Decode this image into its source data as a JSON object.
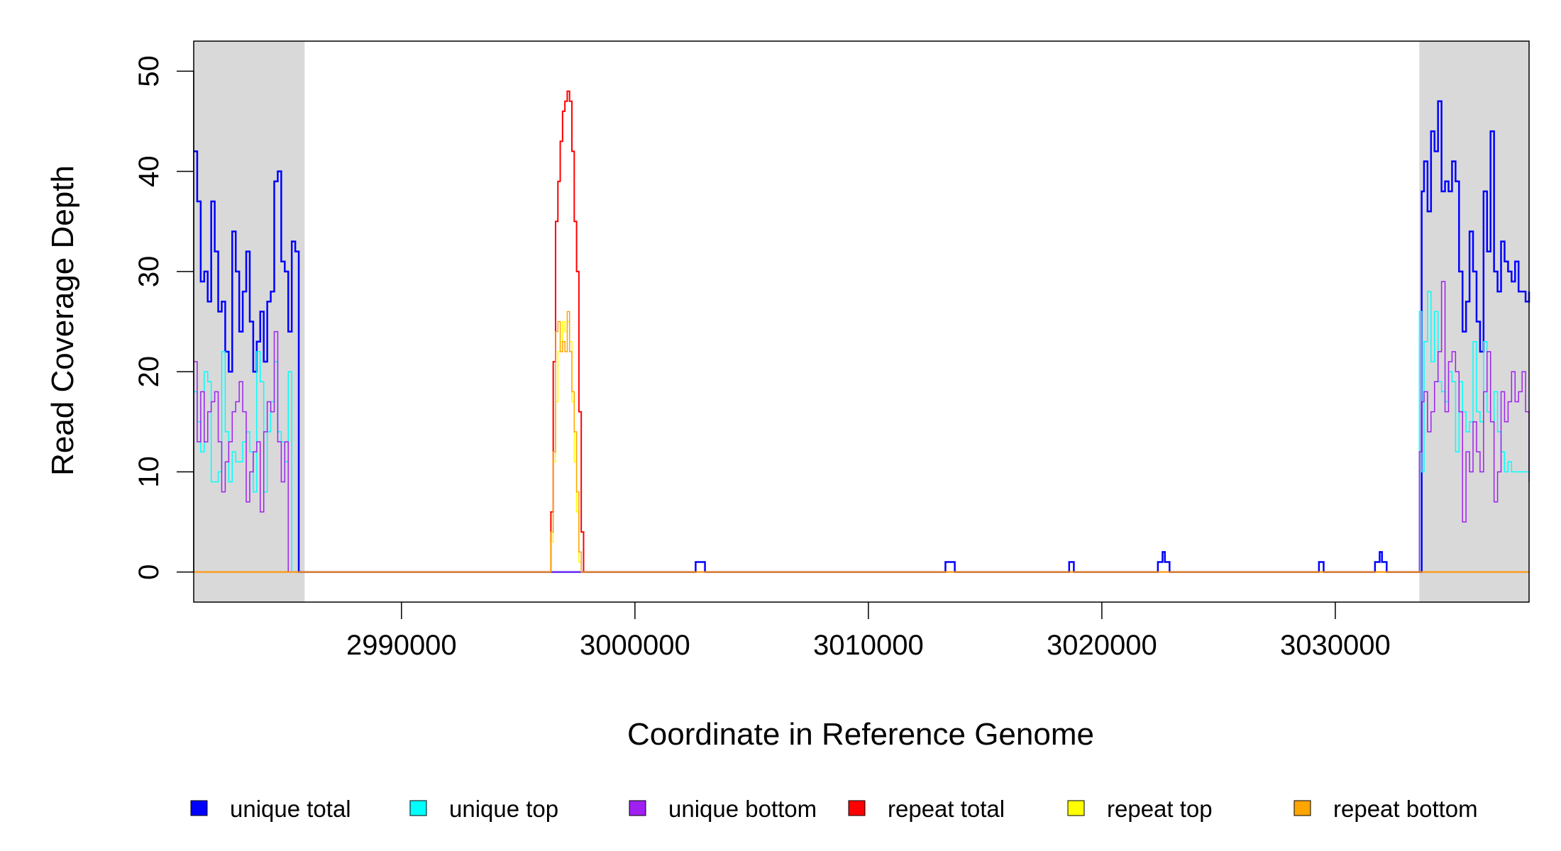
{
  "chart_data": {
    "type": "line",
    "title": "",
    "xlabel": "Coordinate in Reference Genome",
    "ylabel": "Read Coverage Depth",
    "xlim": [
      2981100,
      3038300
    ],
    "ylim": [
      -3,
      53
    ],
    "x_ticks": [
      2990000,
      3000000,
      3010000,
      3020000,
      3030000
    ],
    "x_tick_labels": [
      "2990000",
      "3000000",
      "3010000",
      "3020000",
      "3030000"
    ],
    "y_ticks": [
      0,
      10,
      20,
      30,
      40,
      50
    ],
    "y_tick_labels": [
      "0",
      "10",
      "20",
      "30",
      "40",
      "50"
    ],
    "grid": false,
    "legend_position": "bottom",
    "shaded_regions": [
      {
        "x": [
          2981100,
          2985850
        ],
        "color": "#d9d9d9"
      },
      {
        "x": [
          3033600,
          3038300
        ],
        "color": "#d9d9d9"
      }
    ],
    "series": [
      {
        "name": "unique total",
        "color": "#0000ff",
        "width": 2.5,
        "x": [
          2981100,
          2981250,
          2981400,
          2981550,
          2981700,
          2981850,
          2982000,
          2982150,
          2982300,
          2982450,
          2982600,
          2982750,
          2982900,
          2983050,
          2983200,
          2983350,
          2983500,
          2983650,
          2983800,
          2983950,
          2984100,
          2984250,
          2984400,
          2984550,
          2984700,
          2984850,
          2985000,
          2985150,
          2985300,
          2985450,
          2985600,
          2985750,
          2985850,
          2986000,
          2990000,
          3002500,
          3002600,
          3002800,
          3003000,
          3013200,
          3013300,
          3013500,
          3013700,
          3018500,
          3018600,
          3018800,
          3022300,
          3022400,
          3022600,
          3022700,
          3022900,
          3029200,
          3029300,
          3029500,
          3031500,
          3031700,
          3031900,
          3032000,
          3032200,
          3033600,
          3033700,
          3033800,
          3033950,
          3034100,
          3034250,
          3034400,
          3034550,
          3034700,
          3034850,
          3035000,
          3035150,
          3035300,
          3035450,
          3035600,
          3035750,
          3035900,
          3036050,
          3036200,
          3036350,
          3036500,
          3036650,
          3036800,
          3036950,
          3037100,
          3037250,
          3037400,
          3037550,
          3037700,
          3037850,
          3038000,
          3038150,
          3038300
        ],
        "y": [
          42,
          37,
          29,
          30,
          27,
          37,
          32,
          26,
          27,
          22,
          20,
          34,
          30,
          24,
          28,
          32,
          25,
          20,
          23,
          26,
          21,
          27,
          28,
          39,
          40,
          31,
          30,
          24,
          33,
          32,
          0,
          0,
          0,
          0,
          0,
          0,
          1,
          1,
          0,
          0,
          1,
          1,
          0,
          0,
          1,
          0,
          0,
          1,
          2,
          1,
          0,
          0,
          1,
          0,
          0,
          1,
          2,
          1,
          0,
          0,
          38,
          41,
          36,
          44,
          42,
          47,
          38,
          39,
          38,
          41,
          39,
          30,
          24,
          27,
          34,
          30,
          25,
          22,
          38,
          32,
          44,
          30,
          28,
          33,
          31,
          30,
          29,
          31,
          28,
          28,
          27,
          28
        ]
      },
      {
        "name": "unique top",
        "color": "#00ffff",
        "width": 1.5,
        "x": [
          2981100,
          2981250,
          2981400,
          2981550,
          2981700,
          2981850,
          2982000,
          2982150,
          2982300,
          2982450,
          2982600,
          2982750,
          2982900,
          2983050,
          2983200,
          2983350,
          2983500,
          2983650,
          2983800,
          2983950,
          2984100,
          2984250,
          2984400,
          2984550,
          2984700,
          2984850,
          2985000,
          2985150,
          2985300,
          2985450,
          2985600,
          2985750,
          2985850,
          2986000,
          3033600,
          3033700,
          3033800,
          3033950,
          3034100,
          3034250,
          3034400,
          3034550,
          3034700,
          3034850,
          3035000,
          3035150,
          3035300,
          3035450,
          3035600,
          3035750,
          3035900,
          3036050,
          3036200,
          3036350,
          3036500,
          3036650,
          3036800,
          3036950,
          3037100,
          3037250,
          3037400,
          3037550,
          3037700,
          3037850,
          3038000,
          3038150,
          3038300
        ],
        "y": [
          18,
          15,
          12,
          20,
          19,
          9,
          9,
          10,
          22,
          14,
          9,
          12,
          11,
          11,
          13,
          14,
          12,
          8,
          22,
          19,
          8,
          14,
          17,
          21,
          14,
          13,
          11,
          20,
          0,
          0,
          0,
          0,
          0,
          0,
          26,
          10,
          23,
          28,
          21,
          26,
          19,
          18,
          17,
          20,
          19,
          12,
          19,
          16,
          14,
          15,
          23,
          16,
          15,
          23,
          16,
          15,
          18,
          14,
          12,
          10,
          11,
          10,
          10,
          10,
          10,
          10,
          10
        ]
      },
      {
        "name": "unique bottom",
        "color": "#a020f0",
        "width": 1.5,
        "x": [
          2981100,
          2981250,
          2981400,
          2981550,
          2981700,
          2981850,
          2982000,
          2982150,
          2982300,
          2982450,
          2982600,
          2982750,
          2982900,
          2983050,
          2983200,
          2983350,
          2983500,
          2983650,
          2983800,
          2983950,
          2984100,
          2984250,
          2984400,
          2984550,
          2984700,
          2984850,
          2985000,
          2985150,
          2985300,
          2985450,
          2985600,
          2985750,
          2985850,
          2986000,
          3033600,
          3033700,
          3033800,
          3033950,
          3034100,
          3034250,
          3034400,
          3034550,
          3034700,
          3034850,
          3035000,
          3035150,
          3035300,
          3035450,
          3035600,
          3035750,
          3035900,
          3036050,
          3036200,
          3036350,
          3036500,
          3036650,
          3036800,
          3036950,
          3037100,
          3037250,
          3037400,
          3037550,
          3037700,
          3037850,
          3038000,
          3038150,
          3038300
        ],
        "y": [
          21,
          13,
          18,
          13,
          16,
          17,
          18,
          13,
          8,
          11,
          13,
          16,
          17,
          19,
          16,
          7,
          10,
          12,
          13,
          6,
          14,
          17,
          16,
          24,
          13,
          9,
          13,
          0,
          0,
          0,
          0,
          0,
          0,
          0,
          12,
          17,
          18,
          14,
          16,
          19,
          22,
          29,
          16,
          21,
          22,
          20,
          16,
          5,
          12,
          10,
          15,
          12,
          10,
          18,
          22,
          15,
          7,
          10,
          18,
          15,
          17,
          20,
          17,
          18,
          20,
          16,
          9
        ]
      },
      {
        "name": "repeat total",
        "color": "#ff0000",
        "width": 2,
        "x": [
          2981100,
          2996300,
          2996400,
          2996500,
          2996600,
          2996700,
          2996800,
          2996900,
          2997000,
          2997100,
          2997200,
          2997300,
          2997400,
          2997500,
          2997600,
          2997700,
          2997800,
          2997900,
          3038300
        ],
        "y": [
          0,
          0,
          6,
          21,
          35,
          39,
          43,
          46,
          47,
          48,
          47,
          42,
          35,
          30,
          16,
          4,
          0,
          0,
          0
        ]
      },
      {
        "name": "repeat top",
        "color": "#ffff00",
        "width": 1.5,
        "x": [
          2981100,
          2996300,
          2996400,
          2996500,
          2996600,
          2996700,
          2996800,
          2996900,
          2997000,
          2997100,
          2997200,
          2997300,
          2997400,
          2997500,
          2997600,
          2997700,
          3038300
        ],
        "y": [
          0,
          0,
          3,
          11,
          17,
          22,
          23,
          25,
          24,
          25,
          23,
          17,
          11,
          6,
          1,
          0,
          0
        ]
      },
      {
        "name": "repeat bottom",
        "color": "#ffa500",
        "width": 1.5,
        "x": [
          2981100,
          2996300,
          2996400,
          2996500,
          2996600,
          2996700,
          2996800,
          2996900,
          2997000,
          2997100,
          2997200,
          2997300,
          2997400,
          2997500,
          2997600,
          2997700,
          3038300
        ],
        "y": [
          0,
          0,
          4,
          12,
          24,
          25,
          22,
          23,
          22,
          26,
          22,
          18,
          14,
          8,
          2,
          0,
          0
        ]
      }
    ]
  }
}
